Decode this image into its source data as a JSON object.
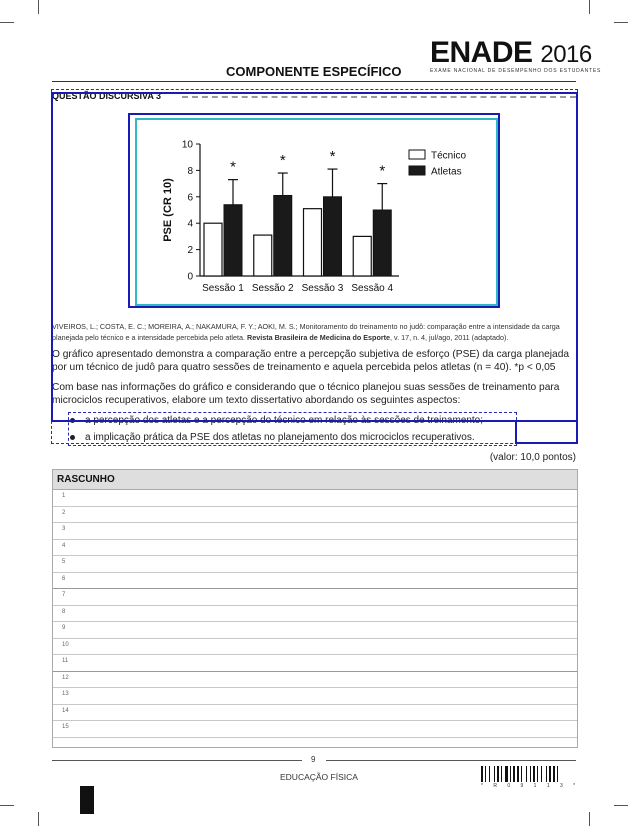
{
  "header": {
    "logo_main": "ENADE",
    "logo_year": "2016",
    "logo_subtitle": "EXAME NACIONAL DE DESEMPENHO DOS ESTUDANTES",
    "section_title": "COMPONENTE ESPECÍFICO"
  },
  "question": {
    "title": "QUESTÃO DISCURSIVA 3",
    "source_text": "VIVEIROS, L.; COSTA, E. C.; MOREIRA, A.; NAKAMURA, F. Y.; AOKI, M. S.; Monitoramento do treinamento no judô: comparação entre a intensidade da carga planejada pelo técnico e a intensidade percebida pelo atleta. ",
    "source_journal": "Revista Brasileira de Medicina do Esporte",
    "source_tail": ", v. 17, n. 4, jul/ago, 2011 (adaptado).",
    "paragraph1": "O gráfico apresentado demonstra a comparação entre a percepção subjetiva de esforço (PSE) da carga planejada por um técnico de judô para quatro sessões de treinamento e aquela percebida pelos atletas (n = 40). *p < 0,05",
    "paragraph2": "Com base nas informações do gráfico e considerando que o técnico planejou suas sessões de treinamento para microciclos recuperativos, elabore um texto dissertativo abordando os seguintes aspectos:",
    "bullets": [
      "a percepção dos atletas e a percepção do técnico em relação às sessões de treinamento;",
      "a implicação prática da PSE dos atletas no planejamento dos microciclos recuperativos."
    ],
    "valor": "(valor: 10,0 pontos)"
  },
  "chart_data": {
    "type": "bar",
    "categories": [
      "Sessão 1",
      "Sessão 2",
      "Sessão 3",
      "Sessão 4"
    ],
    "series": [
      {
        "name": "Técnico",
        "values": [
          4.0,
          3.1,
          5.1,
          3.0
        ],
        "color": "#ffffff"
      },
      {
        "name": "Atletas",
        "values": [
          5.4,
          6.1,
          6.0,
          5.0
        ],
        "errors": [
          1.9,
          1.7,
          2.1,
          2.0
        ],
        "color": "#1a1a1a"
      }
    ],
    "significance": [
      "*",
      "*",
      "*",
      "*"
    ],
    "ylabel": "PSE (CR 10)",
    "xlabel": "",
    "ylim": [
      0,
      10
    ],
    "yticks": [
      0,
      2,
      4,
      6,
      8,
      10
    ],
    "legend": "top-right"
  },
  "rascunho": {
    "title": "RASCUNHO",
    "lines": [
      "1",
      "2",
      "3",
      "4",
      "5",
      "6",
      "7",
      "8",
      "9",
      "10",
      "11",
      "12",
      "13",
      "14",
      "15"
    ]
  },
  "footer": {
    "page_number": "9",
    "course": "EDUCAÇÃO FÍSICA",
    "barcode_digits": "* R 0 9 1 1 3 *"
  }
}
